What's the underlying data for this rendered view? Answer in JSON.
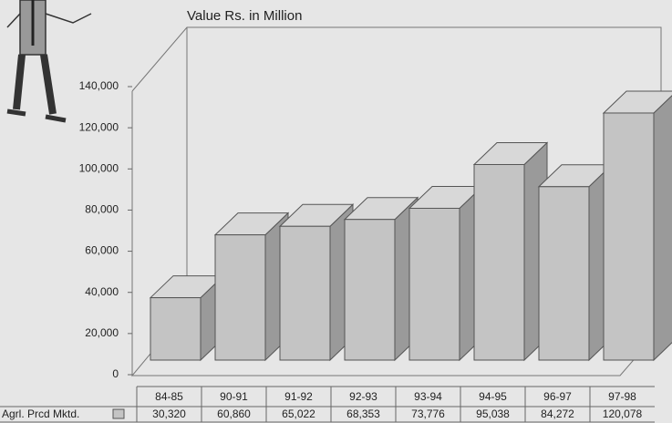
{
  "chart_data": {
    "type": "bar3d",
    "title": "Value Rs. in Million",
    "categories": [
      "84-85",
      "90-91",
      "91-92",
      "92-93",
      "93-94",
      "94-95",
      "96-97",
      "97-98"
    ],
    "series": [
      {
        "name": "Agrl. Prcd Mktd.",
        "color": "#c4c4c4",
        "values": [
          30320,
          60860,
          65022,
          68353,
          73776,
          95038,
          84272,
          120078
        ],
        "value_labels": [
          "30,320",
          "60,860",
          "65,022",
          "68,353",
          "73,776",
          "95,038",
          "84,272",
          "120,078"
        ]
      }
    ],
    "ylim": [
      0,
      140000
    ],
    "yticks": [
      0,
      {
        "value": 20000,
        "label": "20,000"
      },
      {
        "value": 40000,
        "label": "40,000"
      },
      {
        "value": 60000,
        "label": "60,000"
      },
      {
        "value": 80000,
        "label": "80,000"
      },
      {
        "value": 100000,
        "label": "100,000"
      },
      {
        "value": 120000,
        "label": "120,000"
      },
      {
        "value": 140000,
        "label": "140,000"
      }
    ]
  }
}
